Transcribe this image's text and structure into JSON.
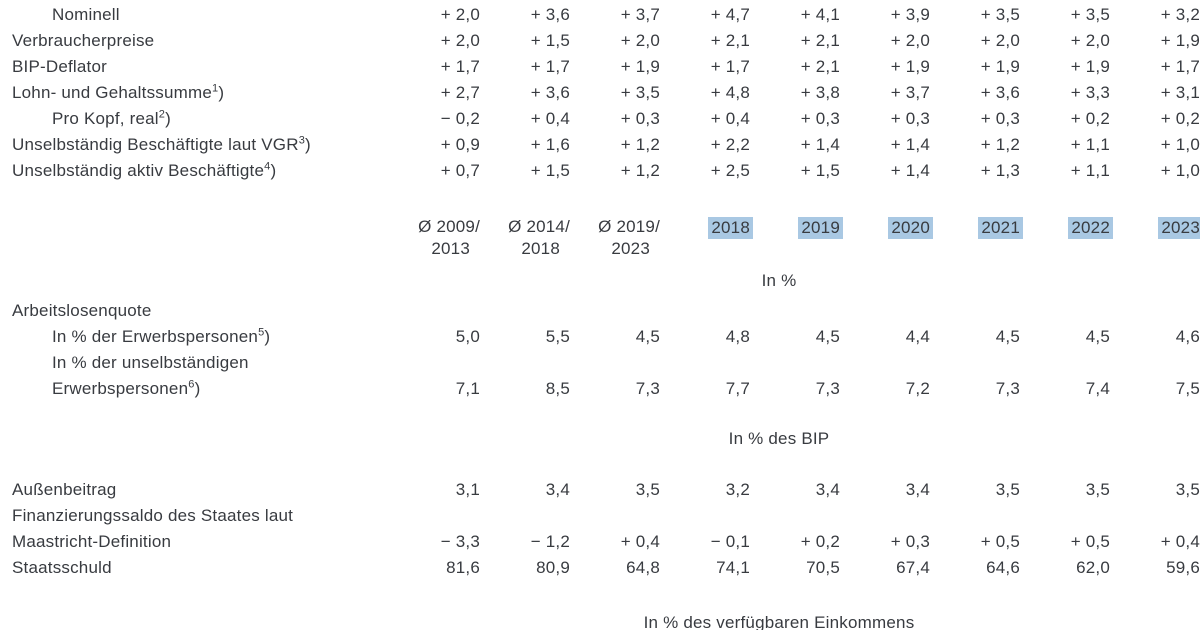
{
  "colors": {
    "text": "#383b40",
    "year_highlight": "#a9c8e3"
  },
  "header": {
    "periods": [
      {
        "l1": "Ø 2009/",
        "l2": "2013"
      },
      {
        "l1": "Ø 2014/",
        "l2": "2018"
      },
      {
        "l1": "Ø 2019/",
        "l2": "2023"
      }
    ],
    "years": [
      "2018",
      "2019",
      "2020",
      "2021",
      "2022",
      "2023"
    ]
  },
  "sections": {
    "s1": {
      "rows": [
        {
          "cls": "tr ind",
          "l1": "Nominell",
          "v": [
            "+ 2,0",
            "+ 3,6",
            "+ 3,7",
            "+ 4,7",
            "+ 4,1",
            "+ 3,9",
            "+ 3,5",
            "+ 3,5",
            "+ 3,2"
          ]
        },
        {
          "cls": "tr",
          "l1": "Verbraucherpreise",
          "v": [
            "+ 2,0",
            "+ 1,5",
            "+ 2,0",
            "+ 2,1",
            "+ 2,1",
            "+ 2,0",
            "+ 2,0",
            "+ 2,0",
            "+ 1,9"
          ]
        },
        {
          "cls": "tr",
          "l1": "BIP-Deflator",
          "v": [
            "+ 1,7",
            "+ 1,7",
            "+ 1,9",
            "+ 1,7",
            "+ 2,1",
            "+ 1,9",
            "+ 1,9",
            "+ 1,9",
            "+ 1,7"
          ]
        },
        {
          "cls": "tr",
          "l1": "Lohn- und Gehaltssumme",
          "s1": "1",
          "p1": ")",
          "v": [
            "+ 2,7",
            "+ 3,6",
            "+ 3,5",
            "+ 4,8",
            "+ 3,8",
            "+ 3,7",
            "+ 3,6",
            "+ 3,3",
            "+ 3,1"
          ]
        },
        {
          "cls": "tr ind",
          "l1": "Pro Kopf, real",
          "s1": "2",
          "p1": ")",
          "v": [
            "− 0,2",
            "+ 0,4",
            "+ 0,3",
            "+ 0,4",
            "+ 0,3",
            "+ 0,3",
            "+ 0,3",
            "+ 0,2",
            "+ 0,2"
          ]
        },
        {
          "cls": "tr",
          "l1": "Unselbständig Beschäftigte laut VGR",
          "s1": "3",
          "p1": ")",
          "v": [
            "+ 0,9",
            "+ 1,6",
            "+ 1,2",
            "+ 2,2",
            "+ 1,4",
            "+ 1,4",
            "+ 1,2",
            "+ 1,1",
            "+ 1,0"
          ]
        },
        {
          "cls": "tr",
          "l1": "Unselbständig aktiv Beschäftigte",
          "s1": "4",
          "p1": ")",
          "v": [
            "+ 0,7",
            "+ 1,5",
            "+ 1,2",
            "+ 2,5",
            "+ 1,5",
            "+ 1,4",
            "+ 1,3",
            "+ 1,1",
            "+ 1,0"
          ]
        }
      ]
    },
    "s2": {
      "label": "In %",
      "rows": [
        {
          "cls": "tr",
          "l1": "Arbeitslosenquote",
          "v": [
            "",
            "",
            "",
            "",
            "",
            "",
            "",
            "",
            ""
          ]
        },
        {
          "cls": "tr ind",
          "l1": "In % der Erwerbspersonen",
          "s1": "5",
          "p1": ")",
          "v": [
            "5,0",
            "5,5",
            "4,5",
            "4,8",
            "4,5",
            "4,4",
            "4,5",
            "4,5",
            "4,6"
          ]
        },
        {
          "cls": "tr ind two",
          "l1": "In % der unselbständigen",
          "l2": "Erwerbspersonen",
          "s2": "6",
          "p2": ")",
          "v": [
            "7,1",
            "8,5",
            "7,3",
            "7,7",
            "7,3",
            "7,2",
            "7,3",
            "7,4",
            "7,5"
          ]
        }
      ]
    },
    "s3": {
      "label": "In % des BIP",
      "rows": [
        {
          "cls": "tr",
          "l1": "Außenbeitrag",
          "v": [
            "3,1",
            "3,4",
            "3,5",
            "3,2",
            "3,4",
            "3,4",
            "3,5",
            "3,5",
            "3,5"
          ]
        },
        {
          "cls": "tr two",
          "l1": "Finanzierungssaldo des Staates laut",
          "l2": "Maastricht-Definition",
          "v": [
            "− 3,3",
            "− 1,2",
            "+ 0,4",
            "− 0,1",
            "+ 0,2",
            "+ 0,3",
            "+ 0,5",
            "+ 0,5",
            "+ 0,4"
          ]
        },
        {
          "cls": "tr",
          "l1": "Staatsschuld",
          "v": [
            "81,6",
            "80,9",
            "64,8",
            "74,1",
            "70,5",
            "67,4",
            "64,6",
            "62,0",
            "59,6"
          ]
        }
      ]
    },
    "s4": {
      "label": "In % des verfügbaren Einkommens"
    }
  }
}
